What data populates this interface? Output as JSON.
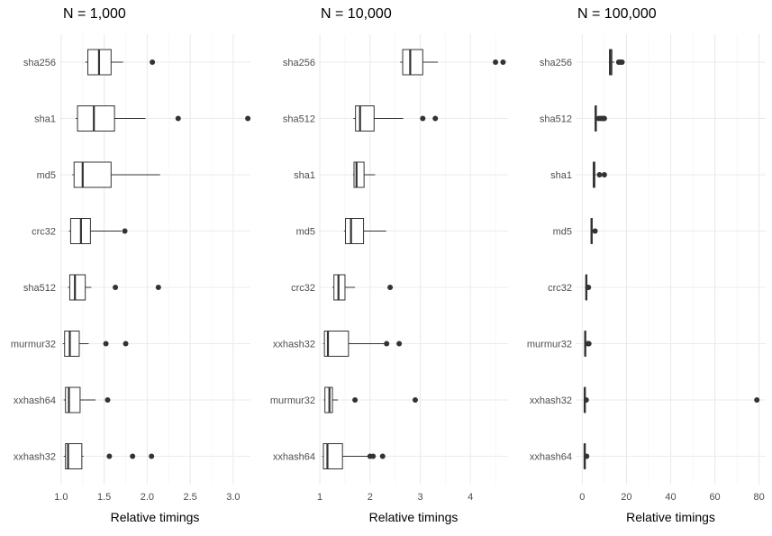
{
  "chart_data": [
    {
      "type": "boxplot",
      "title": "N = 1,000",
      "xlabel": "Relative timings",
      "xlim": [
        0.98,
        3.2
      ],
      "xticks": [
        1.0,
        1.5,
        2.0,
        2.5,
        3.0
      ],
      "xtick_labels": [
        "1.0",
        "1.5",
        "2.0",
        "2.5",
        "3.0"
      ],
      "grid": true,
      "categories": [
        "sha256",
        "sha1",
        "md5",
        "crc32",
        "sha512",
        "murmur32",
        "xxhash64",
        "xxhash32"
      ],
      "boxes": [
        {
          "name": "sha256",
          "whisker_low": 1.28,
          "q1": 1.31,
          "median": 1.44,
          "q3": 1.58,
          "whisker_high": 1.72,
          "outliers": [
            2.06
          ]
        },
        {
          "name": "sha1",
          "whisker_low": 1.17,
          "q1": 1.19,
          "median": 1.38,
          "q3": 1.62,
          "whisker_high": 1.98,
          "outliers": [
            2.36,
            3.17
          ]
        },
        {
          "name": "md5",
          "whisker_low": 1.13,
          "q1": 1.15,
          "median": 1.25,
          "q3": 1.58,
          "whisker_high": 2.15,
          "outliers": []
        },
        {
          "name": "crc32",
          "whisker_low": 1.09,
          "q1": 1.11,
          "median": 1.23,
          "q3": 1.34,
          "whisker_high": 1.7,
          "outliers": [
            1.74
          ]
        },
        {
          "name": "sha512",
          "whisker_low": 1.08,
          "q1": 1.1,
          "median": 1.16,
          "q3": 1.28,
          "whisker_high": 1.35,
          "outliers": [
            1.63,
            2.13
          ]
        },
        {
          "name": "murmur32",
          "whisker_low": 1.02,
          "q1": 1.04,
          "median": 1.1,
          "q3": 1.21,
          "whisker_high": 1.32,
          "outliers": [
            1.52,
            1.75
          ]
        },
        {
          "name": "xxhash64",
          "whisker_low": 1.03,
          "q1": 1.05,
          "median": 1.09,
          "q3": 1.22,
          "whisker_high": 1.4,
          "outliers": [
            1.54
          ]
        },
        {
          "name": "xxhash32",
          "whisker_low": 1.03,
          "q1": 1.05,
          "median": 1.08,
          "q3": 1.24,
          "whisker_high": 1.26,
          "outliers": [
            1.56,
            1.83,
            2.05
          ]
        }
      ]
    },
    {
      "type": "boxplot",
      "title": "N = 10,000",
      "xlabel": "Relative timings",
      "xlim": [
        0.98,
        4.75
      ],
      "xticks": [
        1,
        2,
        3,
        4
      ],
      "xtick_labels": [
        "1",
        "2",
        "3",
        "4"
      ],
      "grid": true,
      "categories": [
        "sha256",
        "sha512",
        "sha1",
        "md5",
        "crc32",
        "xxhash32",
        "murmur32",
        "xxhash64"
      ],
      "boxes": [
        {
          "name": "sha256",
          "whisker_low": 2.6,
          "q1": 2.65,
          "median": 2.8,
          "q3": 3.05,
          "whisker_high": 3.35,
          "outliers": [
            4.5,
            4.65
          ]
        },
        {
          "name": "sha512",
          "whisker_low": 1.67,
          "q1": 1.71,
          "median": 1.8,
          "q3": 2.08,
          "whisker_high": 2.66,
          "outliers": [
            3.05,
            3.3
          ]
        },
        {
          "name": "sha1",
          "whisker_low": 1.66,
          "q1": 1.68,
          "median": 1.73,
          "q3": 1.88,
          "whisker_high": 2.1,
          "outliers": []
        },
        {
          "name": "md5",
          "whisker_low": 1.48,
          "q1": 1.51,
          "median": 1.62,
          "q3": 1.87,
          "whisker_high": 2.32,
          "outliers": []
        },
        {
          "name": "crc32",
          "whisker_low": 1.25,
          "q1": 1.28,
          "median": 1.37,
          "q3": 1.5,
          "whisker_high": 1.7,
          "outliers": [
            2.4
          ]
        },
        {
          "name": "xxhash32",
          "whisker_low": 1.07,
          "q1": 1.09,
          "median": 1.16,
          "q3": 1.57,
          "whisker_high": 2.3,
          "outliers": [
            2.33,
            2.58
          ]
        },
        {
          "name": "murmur32",
          "whisker_low": 1.08,
          "q1": 1.1,
          "median": 1.19,
          "q3": 1.25,
          "whisker_high": 1.36,
          "outliers": [
            1.7,
            2.9
          ]
        },
        {
          "name": "xxhash64",
          "whisker_low": 1.05,
          "q1": 1.07,
          "median": 1.15,
          "q3": 1.45,
          "whisker_high": 1.98,
          "outliers": [
            2.0,
            2.06,
            2.25
          ]
        }
      ]
    },
    {
      "type": "boxplot",
      "title": "N = 100,000",
      "xlabel": "Relative timings",
      "xlim": [
        -3,
        83
      ],
      "xticks": [
        0,
        20,
        40,
        60,
        80
      ],
      "xtick_labels": [
        "0",
        "20",
        "40",
        "60",
        "80"
      ],
      "grid": true,
      "categories": [
        "sha256",
        "sha512",
        "sha1",
        "md5",
        "crc32",
        "murmur32",
        "xxhash32",
        "xxhash64"
      ],
      "boxes": [
        {
          "name": "sha256",
          "whisker_low": 12.0,
          "q1": 12.3,
          "median": 12.8,
          "q3": 13.4,
          "whisker_high": 14.5,
          "outliers": [
            16.5,
            17.3,
            18.0
          ]
        },
        {
          "name": "sha512",
          "whisker_low": 5.6,
          "q1": 5.8,
          "median": 6.1,
          "q3": 6.4,
          "whisker_high": 6.8,
          "outliers": [
            7.5,
            8.5,
            9.3,
            10.0
          ]
        },
        {
          "name": "sha1",
          "whisker_low": 4.8,
          "q1": 5.0,
          "median": 5.2,
          "q3": 5.7,
          "whisker_high": 6.2,
          "outliers": [
            7.8,
            10.0
          ]
        },
        {
          "name": "md5",
          "whisker_low": 3.8,
          "q1": 4.0,
          "median": 4.2,
          "q3": 4.5,
          "whisker_high": 4.8,
          "outliers": [
            5.8
          ]
        },
        {
          "name": "crc32",
          "whisker_low": 1.5,
          "q1": 1.7,
          "median": 1.8,
          "q3": 1.95,
          "whisker_high": 2.1,
          "outliers": [
            2.5,
            2.8
          ]
        },
        {
          "name": "murmur32",
          "whisker_low": 1.0,
          "q1": 1.2,
          "median": 1.3,
          "q3": 1.45,
          "whisker_high": 1.6,
          "outliers": [
            2.5,
            3.0
          ]
        },
        {
          "name": "xxhash32",
          "whisker_low": 0.8,
          "q1": 1.0,
          "median": 1.1,
          "q3": 1.2,
          "whisker_high": 1.35,
          "outliers": [
            1.8,
            79.0
          ]
        },
        {
          "name": "xxhash64",
          "whisker_low": 0.8,
          "q1": 1.0,
          "median": 1.05,
          "q3": 1.15,
          "whisker_high": 1.3,
          "outliers": [
            2.0
          ]
        }
      ]
    }
  ],
  "colors": {
    "grid": "#ebebeb",
    "box_stroke": "#333333",
    "box_fill": "#ffffff",
    "tick_text": "#4d4d4d",
    "title_text": "#000000"
  }
}
